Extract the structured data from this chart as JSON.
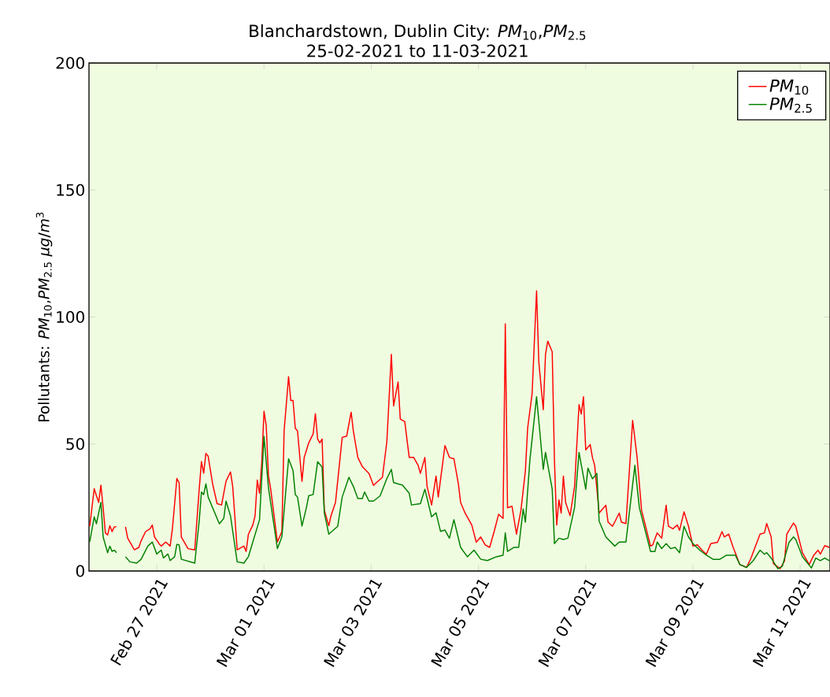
{
  "chart_data": {
    "type": "line",
    "title": "Blanchardstown, Dublin City: *PM*$_{10}$,*PM*$_{2.5}$",
    "subtitle": "25-02-2021 to 11-03-2021",
    "ylabel": "Pollutants: *PM*$_{10}$,*PM*$_{2.5}$ *μg*/*m*$^{3}$",
    "xlim": [
      "2021-02-25T17:40",
      "2021-03-11T13:20"
    ],
    "xticks": [
      {
        "value": "2021-02-27",
        "label": "Feb 27 2021"
      },
      {
        "value": "2021-03-01",
        "label": "Mar 01 2021"
      },
      {
        "value": "2021-03-03",
        "label": "Mar 03 2021"
      },
      {
        "value": "2021-03-05",
        "label": "Mar 05 2021"
      },
      {
        "value": "2021-03-07",
        "label": "Mar 07 2021"
      },
      {
        "value": "2021-03-09",
        "label": "Mar 09 2021"
      },
      {
        "value": "2021-03-11",
        "label": "Mar 11 2021"
      }
    ],
    "ylim": [
      0,
      200
    ],
    "yticks": [
      0,
      50,
      100,
      150,
      200
    ],
    "legend": "top right",
    "line_style": "solid",
    "series": [
      {
        "name": "*PM*$_{10}$",
        "color": "#ff0000",
        "x": [
          "2021-02-25T18:00",
          "2021-02-25T20:00",
          "2021-02-25T21:00",
          "2021-02-25T22:00",
          "2021-02-25T23:00",
          "2021-02-26T00:00",
          "2021-02-26T01:00",
          "2021-02-26T02:00",
          "2021-02-26T03:00",
          "2021-02-26T04:00",
          "2021-02-26T05:00",
          "2021-02-26T06:00",
          "2021-02-26T08:00",
          "2021-02-26T10:00",
          "2021-02-26T11:00",
          "2021-02-26T14:00",
          "2021-02-26T16:00",
          "2021-02-26T17:00",
          "2021-02-26T19:00",
          "2021-02-26T21:00",
          "2021-02-26T22:00",
          "2021-02-26T23:00",
          "2021-02-27T01:00",
          "2021-02-27T02:00",
          "2021-02-27T04:00",
          "2021-02-27T06:00",
          "2021-02-27T07:00",
          "2021-02-27T09:00",
          "2021-02-27T10:00",
          "2021-02-27T11:00",
          "2021-02-27T14:00",
          "2021-02-27T17:00",
          "2021-02-27T19:00",
          "2021-02-27T20:00",
          "2021-02-27T21:00",
          "2021-02-27T22:00",
          "2021-02-27T23:00",
          "2021-02-28T01:00",
          "2021-02-28T03:00",
          "2021-02-28T05:00",
          "2021-02-28T07:00",
          "2021-02-28T09:00",
          "2021-02-28T10:00",
          "2021-02-28T12:00",
          "2021-02-28T15:00",
          "2021-02-28T16:00",
          "2021-02-28T17:00",
          "2021-02-28T19:00",
          "2021-02-28T20:00",
          "2021-02-28T21:00",
          "2021-02-28T22:00",
          "2021-02-28T23:00",
          "2021-03-01T00:00",
          "2021-03-01T01:00",
          "2021-03-01T02:00",
          "2021-03-01T03:00",
          "2021-03-01T06:00",
          "2021-03-01T08:00",
          "2021-03-01T09:00",
          "2021-03-01T11:00",
          "2021-03-01T12:00",
          "2021-03-01T13:00",
          "2021-03-01T14:00",
          "2021-03-01T15:00",
          "2021-03-01T17:00",
          "2021-03-01T18:00",
          "2021-03-01T20:00",
          "2021-03-01T22:00",
          "2021-03-01T23:00",
          "2021-03-02T00:00",
          "2021-03-02T01:00",
          "2021-03-02T02:00",
          "2021-03-02T03:00",
          "2021-03-02T05:00",
          "2021-03-02T06:00",
          "2021-03-02T08:00",
          "2021-03-02T11:00",
          "2021-03-02T13:00",
          "2021-03-02T15:00",
          "2021-03-02T16:00",
          "2021-03-02T18:00",
          "2021-03-02T20:00",
          "2021-03-02T23:00",
          "2021-03-03T01:00",
          "2021-03-03T05:00",
          "2021-03-03T07:00",
          "2021-03-03T09:00",
          "2021-03-03T10:00",
          "2021-03-03T12:00",
          "2021-03-03T13:00",
          "2021-03-03T15:00",
          "2021-03-03T17:00",
          "2021-03-03T19:00",
          "2021-03-03T21:00",
          "2021-03-03T22:00",
          "2021-03-04T00:00",
          "2021-03-04T01:00",
          "2021-03-04T03:00",
          "2021-03-04T05:00",
          "2021-03-04T06:00",
          "2021-03-04T09:00",
          "2021-03-04T11:00",
          "2021-03-04T13:00",
          "2021-03-04T15:00",
          "2021-03-04T16:00",
          "2021-03-04T18:00",
          "2021-03-04T21:00",
          "2021-03-04T23:00",
          "2021-03-05T01:00",
          "2021-03-05T03:00",
          "2021-03-05T05:00",
          "2021-03-05T07:00",
          "2021-03-05T09:00",
          "2021-03-05T11:00",
          "2021-03-05T12:00",
          "2021-03-05T13:00",
          "2021-03-05T15:00",
          "2021-03-05T17:00",
          "2021-03-05T19:00",
          "2021-03-05T21:00",
          "2021-03-05T22:00",
          "2021-03-06T00:00",
          "2021-03-06T02:00",
          "2021-03-06T03:00",
          "2021-03-06T05:00",
          "2021-03-06T06:00",
          "2021-03-06T07:00",
          "2021-03-06T09:00",
          "2021-03-06T10:00",
          "2021-03-06T11:00",
          "2021-03-06T12:00",
          "2021-03-06T13:00",
          "2021-03-06T14:00",
          "2021-03-06T15:00",
          "2021-03-06T17:00",
          "2021-03-06T19:00",
          "2021-03-06T21:00",
          "2021-03-06T22:00",
          "2021-03-06T23:00",
          "2021-03-07T00:00",
          "2021-03-07T02:00",
          "2021-03-07T03:00",
          "2021-03-07T04:00",
          "2021-03-07T06:00",
          "2021-03-07T09:00",
          "2021-03-07T10:00",
          "2021-03-07T12:00",
          "2021-03-07T15:00",
          "2021-03-07T16:00",
          "2021-03-07T18:00",
          "2021-03-07T21:00",
          "2021-03-07T23:00",
          "2021-03-08T01:00",
          "2021-03-08T05:00",
          "2021-03-08T06:00",
          "2021-03-08T08:00",
          "2021-03-08T10:00",
          "2021-03-08T12:00",
          "2021-03-08T13:00",
          "2021-03-08T15:00",
          "2021-03-08T17:00",
          "2021-03-08T18:00",
          "2021-03-08T20:00",
          "2021-03-08T22:00",
          "2021-03-09T00:00",
          "2021-03-09T02:00",
          "2021-03-09T04:00",
          "2021-03-09T06:00",
          "2021-03-09T08:00",
          "2021-03-09T11:00",
          "2021-03-09T13:00",
          "2021-03-09T14:00",
          "2021-03-09T16:00",
          "2021-03-09T18:00",
          "2021-03-09T21:00",
          "2021-03-10T00:00",
          "2021-03-10T02:00",
          "2021-03-10T06:00",
          "2021-03-10T08:00",
          "2021-03-10T09:00",
          "2021-03-10T11:00",
          "2021-03-10T12:00",
          "2021-03-10T15:00",
          "2021-03-10T17:00",
          "2021-03-10T18:00",
          "2021-03-10T21:00",
          "2021-03-10T22:00",
          "2021-03-11T01:00",
          "2021-03-11T04:00",
          "2021-03-11T06:00",
          "2021-03-11T08:00",
          "2021-03-11T09:00",
          "2021-03-11T11:00",
          "2021-03-11T13:00"
        ],
        "values": [
          17.6,
          32.4,
          29.6,
          27,
          33.8,
          24.9,
          15,
          14.2,
          17.8,
          15.5,
          17.4,
          17.4,
          null,
          17.4,
          12.9,
          8.3,
          9.3,
          11.9,
          15.5,
          16.6,
          18.1,
          13.4,
          10.8,
          9.8,
          11.4,
          9.8,
          16.6,
          36.4,
          34.8,
          13.4,
          8.8,
          8.3,
          32.2,
          43.1,
          38.5,
          46.3,
          45.2,
          34.3,
          26.5,
          26,
          35.3,
          39,
          33.2,
          8.3,
          9.8,
          7.7,
          14.4,
          18.1,
          21.7,
          35.8,
          30.6,
          42.6,
          62.9,
          57.2,
          37.4,
          32.2,
          11.4,
          15.5,
          55.1,
          76.5,
          67.1,
          67.1,
          56.2,
          55.1,
          35.3,
          44.7,
          50.4,
          54,
          61.9,
          52,
          50.4,
          52,
          24,
          17.8,
          21.8,
          27,
          52.6,
          53.1,
          62.5,
          55.1,
          44.7,
          41.1,
          38.4,
          33.7,
          36.9,
          51,
          85.3,
          65,
          74.4,
          59.8,
          58.8,
          44.7,
          44.7,
          41.6,
          38.4,
          44.7,
          33.2,
          26,
          37.4,
          29.1,
          49.4,
          44.7,
          44.2,
          34.3,
          27,
          22.8,
          18.1,
          11.3,
          13.4,
          10.3,
          9.3,
          15.5,
          22.3,
          20.7,
          97.3,
          24.9,
          25.5,
          14.5,
          23.9,
          39.5,
          56.2,
          69.8,
          110.3,
          82.2,
          63.5,
          85.3,
          90.5,
          86.3,
          43.6,
          18.1,
          28,
          22.8,
          37.4,
          27,
          21.8,
          33.2,
          65.5,
          61.8,
          68.6,
          47.7,
          49.8,
          44.7,
          41.6,
          22.8,
          25.9,
          19.2,
          17.6,
          22.8,
          19.2,
          18.7,
          59.3,
          44.7,
          23.9,
          9.8,
          10.3,
          15,
          12.9,
          25.9,
          17.6,
          16.6,
          18.1,
          16,
          23.3,
          17.6,
          9.8,
          10.3,
          8.2,
          6.6,
          10.8,
          11.3,
          15.5,
          13.4,
          14.5,
          9.3,
          2.5,
          1.4,
          5.1,
          14.5,
          15,
          18.7,
          13.4,
          2.9,
          0.9,
          4,
          14.5,
          18.9,
          17.6,
          7.2,
          2.5,
          6.1,
          8.2,
          6.6,
          10,
          9.3
        ]
      },
      {
        "name": "*PM*$_{2.5}$",
        "color": "#008000",
        "x": [
          "2021-02-25T18:00",
          "2021-02-25T20:00",
          "2021-02-25T21:00",
          "2021-02-25T23:00",
          "2021-02-26T00:00",
          "2021-02-26T02:00",
          "2021-02-26T03:00",
          "2021-02-26T04:00",
          "2021-02-26T05:00",
          "2021-02-26T06:00",
          "2021-02-26T08:00",
          "2021-02-26T10:00",
          "2021-02-26T12:00",
          "2021-02-26T15:00",
          "2021-02-26T17:00",
          "2021-02-26T20:00",
          "2021-02-26T22:00",
          "2021-02-27T00:00",
          "2021-02-27T02:00",
          "2021-02-27T03:00",
          "2021-02-27T05:00",
          "2021-02-27T06:00",
          "2021-02-27T08:00",
          "2021-02-27T09:00",
          "2021-02-27T10:00",
          "2021-02-27T11:00",
          "2021-02-27T17:00",
          "2021-02-27T19:00",
          "2021-02-27T20:00",
          "2021-02-27T21:00",
          "2021-02-27T22:00",
          "2021-02-27T23:00",
          "2021-02-28T04:00",
          "2021-02-28T06:00",
          "2021-02-28T07:00",
          "2021-02-28T09:00",
          "2021-02-28T12:00",
          "2021-02-28T15:00",
          "2021-02-28T17:00",
          "2021-02-28T22:00",
          "2021-03-01T00:00",
          "2021-03-01T02:00",
          "2021-03-01T06:00",
          "2021-03-01T08:00",
          "2021-03-01T11:00",
          "2021-03-01T13:00",
          "2021-03-01T14:00",
          "2021-03-01T15:00",
          "2021-03-01T17:00",
          "2021-03-01T19:00",
          "2021-03-01T20:00",
          "2021-03-01T22:00",
          "2021-03-02T00:00",
          "2021-03-02T02:00",
          "2021-03-02T03:00",
          "2021-03-02T05:00",
          "2021-03-02T09:00",
          "2021-03-02T11:00",
          "2021-03-02T14:00",
          "2021-03-02T16:00",
          "2021-03-02T18:00",
          "2021-03-02T20:00",
          "2021-03-02T21:00",
          "2021-03-02T23:00",
          "2021-03-03T01:00",
          "2021-03-03T04:00",
          "2021-03-03T07:00",
          "2021-03-03T09:00",
          "2021-03-03T10:00",
          "2021-03-03T14:00",
          "2021-03-03T17:00",
          "2021-03-03T18:00",
          "2021-03-03T22:00",
          "2021-03-04T00:00",
          "2021-03-04T03:00",
          "2021-03-04T05:00",
          "2021-03-04T07:00",
          "2021-03-04T09:00",
          "2021-03-04T11:00",
          "2021-03-04T13:00",
          "2021-03-04T16:00",
          "2021-03-04T19:00",
          "2021-03-04T22:00",
          "2021-03-05T01:00",
          "2021-03-05T04:00",
          "2021-03-05T08:00",
          "2021-03-05T11:00",
          "2021-03-05T12:00",
          "2021-03-05T13:00",
          "2021-03-05T16:00",
          "2021-03-05T18:00",
          "2021-03-05T20:00",
          "2021-03-05T21:00",
          "2021-03-05T23:00",
          "2021-03-06T02:00",
          "2021-03-06T05:00",
          "2021-03-06T06:00",
          "2021-03-06T09:00",
          "2021-03-06T10:00",
          "2021-03-06T12:00",
          "2021-03-06T14:00",
          "2021-03-06T16:00",
          "2021-03-06T19:00",
          "2021-03-06T21:00",
          "2021-03-07T00:00",
          "2021-03-07T01:00",
          "2021-03-07T03:00",
          "2021-03-07T05:00",
          "2021-03-07T06:00",
          "2021-03-07T09:00",
          "2021-03-07T13:00",
          "2021-03-07T15:00",
          "2021-03-07T18:00",
          "2021-03-07T22:00",
          "2021-03-08T00:00",
          "2021-03-08T05:00",
          "2021-03-08T07:00",
          "2021-03-08T08:00",
          "2021-03-08T10:00",
          "2021-03-08T12:00",
          "2021-03-08T14:00",
          "2021-03-08T16:00",
          "2021-03-08T18:00",
          "2021-03-08T20:00",
          "2021-03-08T22:00",
          "2021-03-09T00:00",
          "2021-03-09T03:00",
          "2021-03-09T06:00",
          "2021-03-09T09:00",
          "2021-03-09T12:00",
          "2021-03-09T15:00",
          "2021-03-09T19:00",
          "2021-03-09T21:00",
          "2021-03-10T00:00",
          "2021-03-10T03:00",
          "2021-03-10T06:00",
          "2021-03-10T08:00",
          "2021-03-10T09:00",
          "2021-03-10T11:00",
          "2021-03-10T14:00",
          "2021-03-10T16:00",
          "2021-03-10T19:00",
          "2021-03-10T21:00",
          "2021-03-10T22:00",
          "2021-03-11T01:00",
          "2021-03-11T05:00",
          "2021-03-11T07:00",
          "2021-03-11T09:00",
          "2021-03-11T11:00",
          "2021-03-11T13:00"
        ],
        "values": [
          11.4,
          21.3,
          18.6,
          27,
          13.4,
          7.2,
          9.8,
          7.7,
          8.2,
          7.2,
          null,
          5.6,
          3.6,
          3.1,
          4.6,
          9.8,
          11.4,
          6.7,
          8.2,
          5.1,
          6.7,
          4.1,
          5.6,
          10.5,
          10.3,
          4.6,
          3.1,
          19.7,
          31.1,
          30.1,
          34.3,
          29.1,
          18.6,
          20.7,
          27.5,
          21.7,
          3.6,
          3.1,
          5.6,
          20.2,
          53,
          32.7,
          8.8,
          13.4,
          44.2,
          39.5,
          30.1,
          29.1,
          17.7,
          25,
          29.6,
          30.1,
          43,
          40.9,
          22.8,
          14.5,
          17.6,
          29.1,
          36.9,
          33.3,
          28.5,
          28.5,
          31.1,
          27.5,
          27.5,
          29.6,
          36.4,
          40,
          34.8,
          33.8,
          30.6,
          26,
          26.5,
          32.2,
          21.3,
          22.9,
          15.6,
          16.1,
          12.9,
          20.2,
          9.3,
          5.6,
          8.2,
          4.6,
          4.1,
          5.6,
          6.2,
          15,
          7.7,
          9.3,
          9.3,
          24.4,
          19.2,
          43.6,
          68.6,
          40,
          46.7,
          32.2,
          10.8,
          12.9,
          12.4,
          12.9,
          24.9,
          46.7,
          32.2,
          40.5,
          36.3,
          38.4,
          19.6,
          13.4,
          9.8,
          11.4,
          11.4,
          41.6,
          24.9,
          7.7,
          7.7,
          11.4,
          8.8,
          10.8,
          8.8,
          9.3,
          7.2,
          17.6,
          13.4,
          10.8,
          8.2,
          6.2,
          4.6,
          4.6,
          6.2,
          6.2,
          2.5,
          1.4,
          4.1,
          8.2,
          6.6,
          7.2,
          5.1,
          0.9,
          1.9,
          11.3,
          13.4,
          12.4,
          5.6,
          1.2,
          5.1,
          4.1,
          5.1,
          4.1
        ]
      }
    ]
  }
}
